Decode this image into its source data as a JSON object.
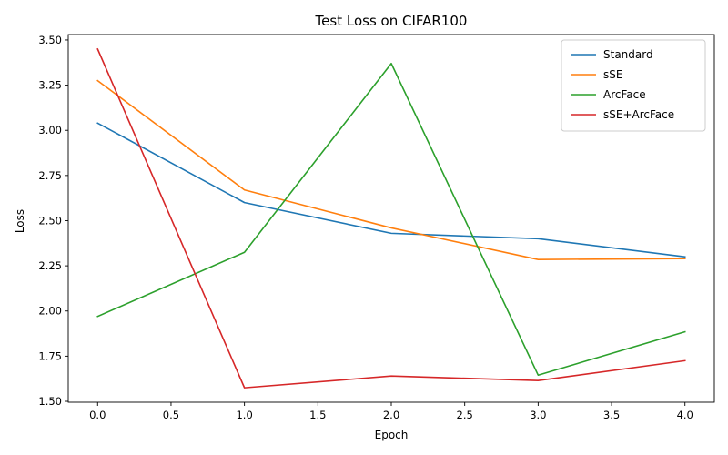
{
  "chart_data": {
    "type": "line",
    "title": "Test Loss on CIFAR100",
    "xlabel": "Epoch",
    "ylabel": "Loss",
    "x": [
      0,
      1,
      2,
      3,
      4
    ],
    "xlim": [
      -0.2,
      4.2
    ],
    "ylim": [
      1.495,
      3.53
    ],
    "xticks": [
      "0.0",
      "0.5",
      "1.0",
      "1.5",
      "2.0",
      "2.5",
      "3.0",
      "3.5",
      "4.0"
    ],
    "yticks": [
      "1.50",
      "1.75",
      "2.00",
      "2.25",
      "2.50",
      "2.75",
      "3.00",
      "3.25",
      "3.50"
    ],
    "grid": false,
    "legend_position": "top-right",
    "series": [
      {
        "name": "Standard",
        "color": "#1f77b4",
        "values": [
          3.04,
          2.6,
          2.43,
          2.4,
          2.3
        ]
      },
      {
        "name": "sSE",
        "color": "#ff7f0e",
        "values": [
          3.275,
          2.67,
          2.46,
          2.285,
          2.29
        ]
      },
      {
        "name": "ArcFace",
        "color": "#2ca02c",
        "values": [
          1.97,
          2.325,
          3.37,
          1.645,
          1.885
        ]
      },
      {
        "name": "sSE+ArcFace",
        "color": "#d62728",
        "values": [
          3.45,
          1.575,
          1.64,
          1.615,
          1.725
        ]
      }
    ]
  }
}
